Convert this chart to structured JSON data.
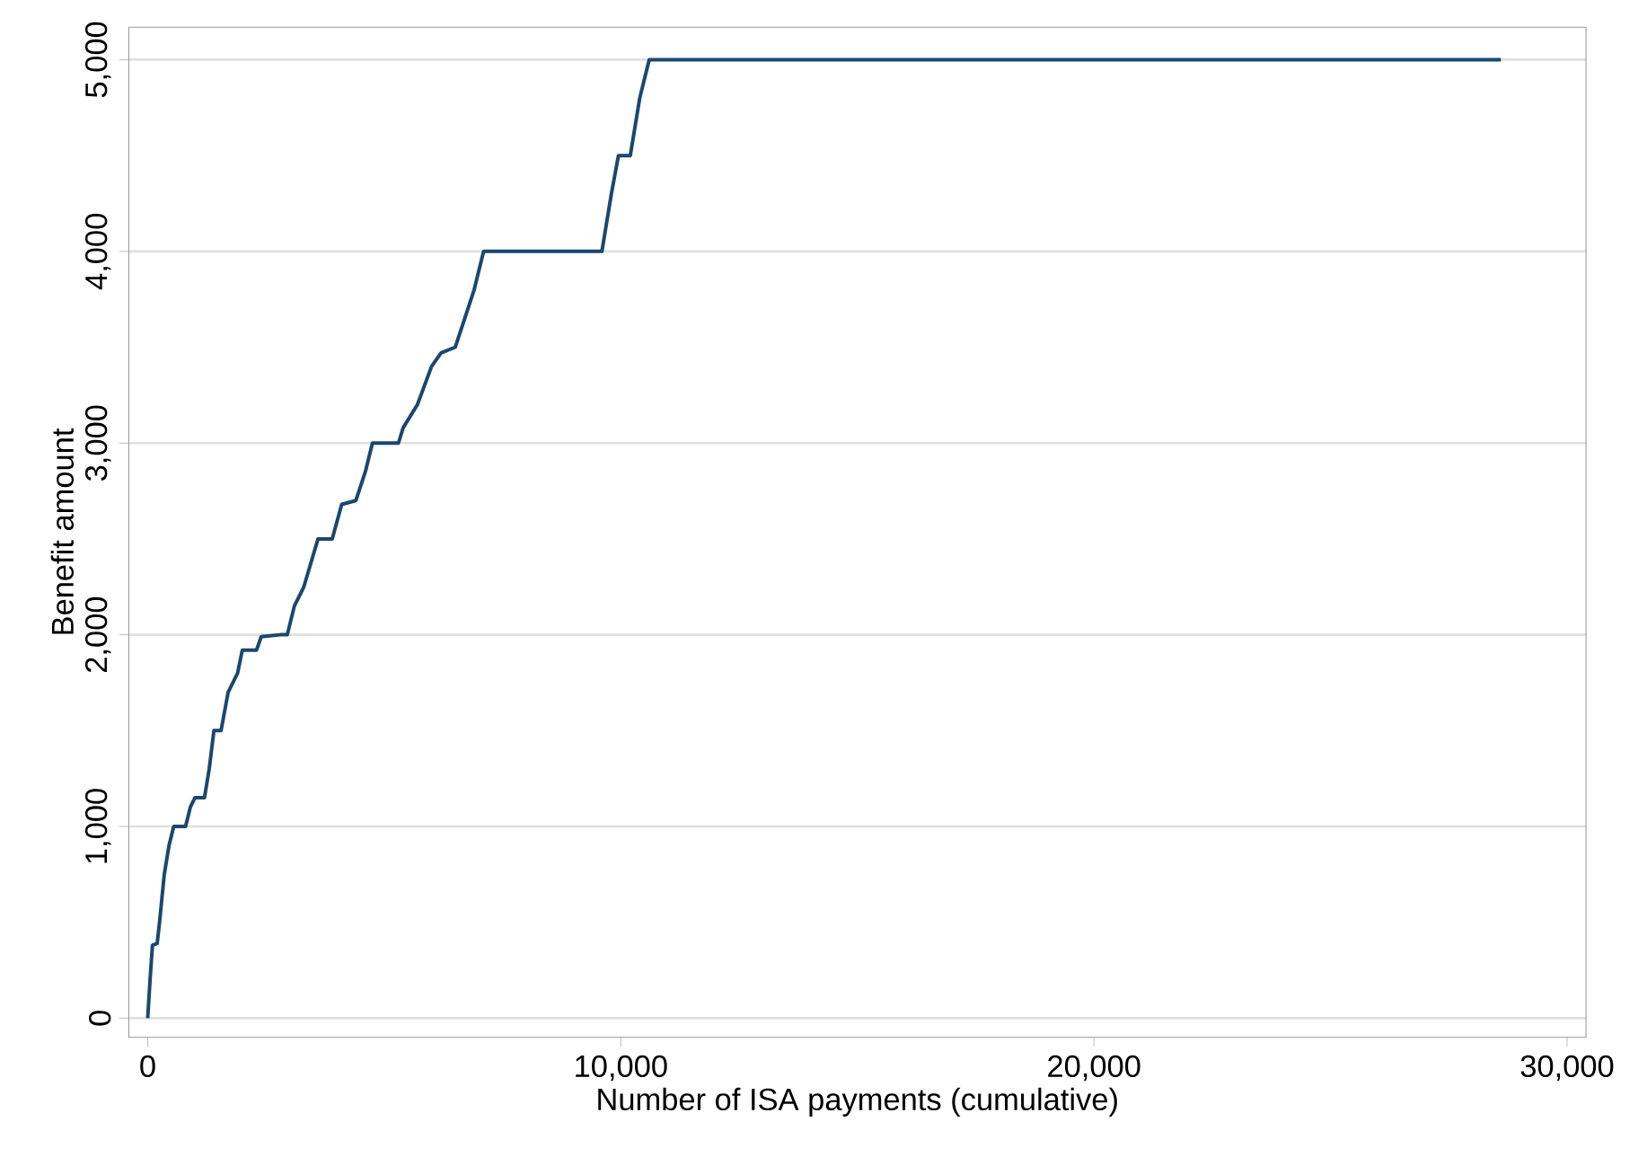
{
  "chart_data": {
    "type": "line",
    "xlabel": "Number of ISA payments (cumulative)",
    "ylabel": "Benefit amount",
    "xlim": [
      -400,
      30400
    ],
    "ylim": [
      -100,
      5170
    ],
    "xticks": [
      {
        "value": 0,
        "label": "0"
      },
      {
        "value": 10000,
        "label": "10,000"
      },
      {
        "value": 20000,
        "label": "20,000"
      },
      {
        "value": 30000,
        "label": "30,000"
      }
    ],
    "yticks": [
      {
        "value": 0,
        "label": "0"
      },
      {
        "value": 1000,
        "label": "1,000"
      },
      {
        "value": 2000,
        "label": "2,000"
      },
      {
        "value": 3000,
        "label": "3,000"
      },
      {
        "value": 4000,
        "label": "4,000"
      },
      {
        "value": 5000,
        "label": "5,000"
      }
    ],
    "grid": "y",
    "marker": "none",
    "line_style": "solid",
    "series": [
      {
        "color": "#1a476f",
        "x": [
          0,
          50,
          100,
          200,
          250,
          350,
          450,
          550,
          800,
          900,
          1000,
          1200,
          1300,
          1400,
          1550,
          1700,
          1900,
          2000,
          2300,
          2400,
          2800,
          2950,
          3100,
          3300,
          3600,
          3900,
          4100,
          4400,
          4600,
          4750,
          5300,
          5400,
          5700,
          6000,
          6200,
          6500,
          6700,
          6900,
          7100,
          9600,
          9800,
          9950,
          10200,
          10400,
          10500,
          10600,
          28600
        ],
        "values": [
          0,
          200,
          380,
          390,
          500,
          750,
          900,
          1000,
          1000,
          1100,
          1150,
          1150,
          1300,
          1500,
          1500,
          1700,
          1800,
          1920,
          1920,
          1990,
          2000,
          2000,
          2150,
          2250,
          2500,
          2500,
          2680,
          2700,
          2850,
          3000,
          3000,
          3080,
          3200,
          3400,
          3470,
          3500,
          3650,
          3800,
          4000,
          4000,
          4300,
          4500,
          4500,
          4800,
          4900,
          5000,
          5000
        ]
      }
    ]
  }
}
